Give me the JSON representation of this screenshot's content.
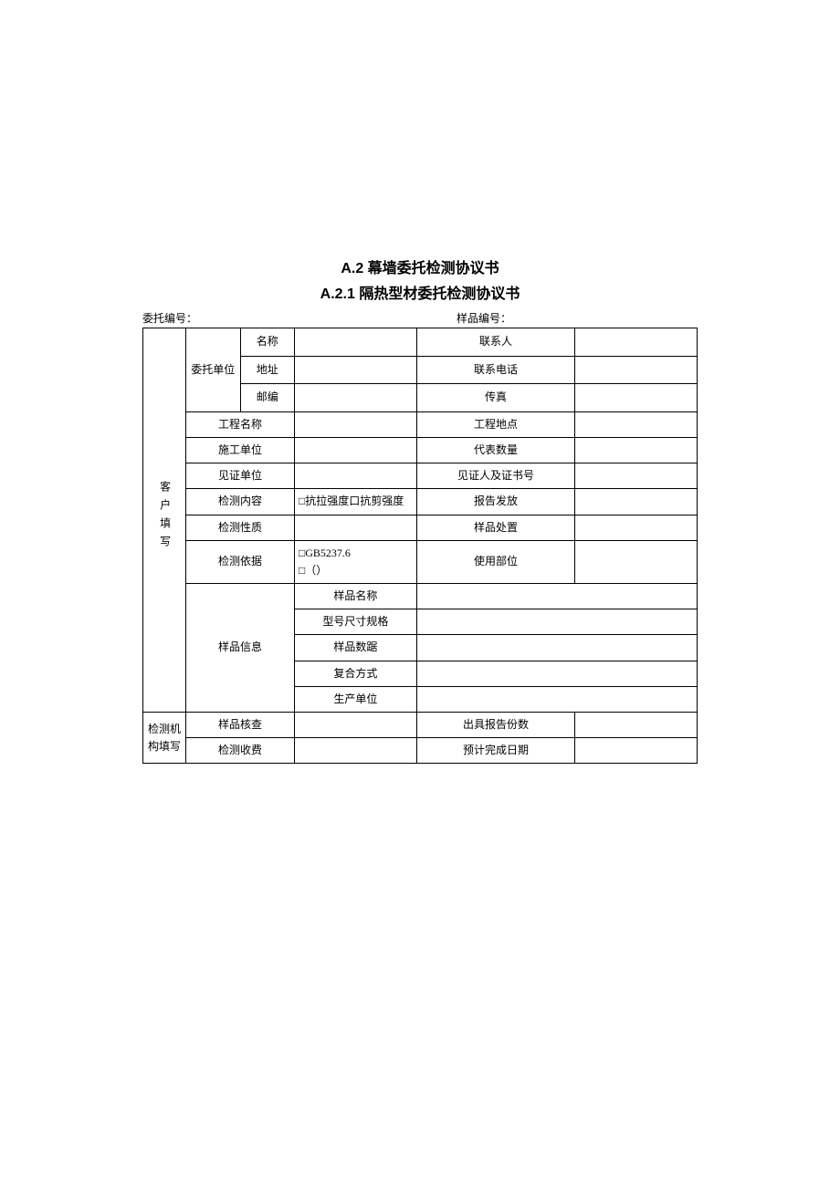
{
  "title": "A.2 幕墙委托检测协议书",
  "subtitle": "A.2.1 隔热型材委托检测协议书",
  "header": {
    "left": "委托编号：",
    "right": "样品编号："
  },
  "sections": {
    "customer": "客户填写",
    "agency": "检测机构填写"
  },
  "entrust_unit": {
    "label": "委托单位",
    "name": "名称",
    "address": "地址",
    "postcode": "邮编"
  },
  "contact": {
    "person": "联系人",
    "phone": "联系电话",
    "fax": "传真"
  },
  "rows": {
    "project_name": "工程名称",
    "project_location": "工程地点",
    "construction_unit": "施工单位",
    "representative_qty": "代表数量",
    "witness_unit": "见证单位",
    "witness_cert": "见证人及证书号",
    "test_content": "检测内容",
    "test_content_value": "□抗拉强度口抗剪强度",
    "report_issue": "报告发放",
    "test_nature": "检测性质",
    "sample_disposal": "样品处置",
    "test_basis": "检测依据",
    "test_basis_value_1": "□GB5237.6",
    "test_basis_value_2": "□（）",
    "use_part": "使用部位",
    "sample_info": "样品信息",
    "sample_name": "样品名称",
    "model_spec": "型号尺寸规格",
    "sample_qty": "样品数踞",
    "composite_method": "复合方式",
    "production_unit": "生产单位",
    "sample_check": "样品核查",
    "report_copies": "出具报告份数",
    "test_fee": "检测收费",
    "expected_date": "预计完成日期"
  }
}
